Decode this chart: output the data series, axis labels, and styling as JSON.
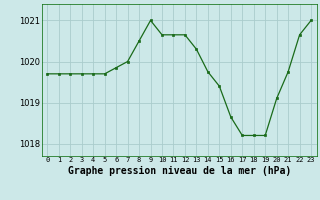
{
  "hours": [
    0,
    1,
    2,
    3,
    4,
    5,
    6,
    7,
    8,
    9,
    10,
    11,
    12,
    13,
    14,
    15,
    16,
    17,
    18,
    19,
    20,
    21,
    22,
    23
  ],
  "pressure": [
    1019.7,
    1019.7,
    1019.7,
    1019.7,
    1019.7,
    1019.7,
    1019.85,
    1020.0,
    1020.5,
    1021.0,
    1020.65,
    1020.65,
    1020.65,
    1020.3,
    1019.75,
    1019.4,
    1018.65,
    1018.2,
    1018.2,
    1018.2,
    1019.1,
    1019.75,
    1020.65,
    1021.0
  ],
  "line_color": "#1a6b1a",
  "marker": "s",
  "marker_size": 2,
  "bg_color": "#cce8e8",
  "grid_color": "#aacccc",
  "xlabel": "Graphe pression niveau de la mer (hPa)",
  "xlabel_fontsize": 7,
  "yticks": [
    1018,
    1019,
    1020,
    1021
  ],
  "ylim": [
    1017.7,
    1021.4
  ],
  "xlim": [
    -0.5,
    23.5
  ],
  "xtick_labels": [
    "0",
    "1",
    "2",
    "3",
    "4",
    "5",
    "6",
    "7",
    "8",
    "9",
    "10",
    "11",
    "12",
    "13",
    "14",
    "15",
    "16",
    "17",
    "18",
    "19",
    "20",
    "21",
    "22",
    "23"
  ],
  "spine_color": "#006600"
}
